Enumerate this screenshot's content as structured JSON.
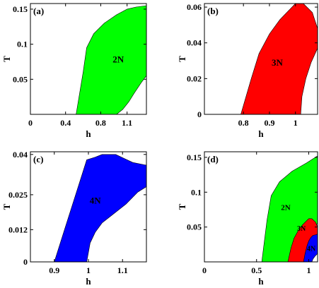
{
  "chart_data": [
    {
      "type": "area",
      "panel_label": "(a)",
      "xlabel": "h",
      "ylabel": "T",
      "xlim": [
        0,
        1.32
      ],
      "ylim": [
        0,
        0.158
      ],
      "xticks": [
        0,
        0.4,
        0.8,
        1.1
      ],
      "xtick_labels": [
        "0",
        "0.4",
        "0.8",
        "1.1"
      ],
      "yticks": [
        0.05,
        0.1,
        0.15
      ],
      "ytick_labels": [
        "0.05",
        "0.1",
        "0.15"
      ],
      "regions": [
        {
          "name": "2N",
          "color": "#00ff00",
          "label_at": [
            1.0,
            0.077
          ],
          "label_size": 13,
          "boundary": [
            [
              0.52,
              0.0
            ],
            [
              0.6,
              0.06
            ],
            [
              0.64,
              0.095
            ],
            [
              0.72,
              0.115
            ],
            [
              0.84,
              0.13
            ],
            [
              0.98,
              0.142
            ],
            [
              1.1,
              0.15
            ],
            [
              1.2,
              0.153
            ],
            [
              1.32,
              0.155
            ],
            [
              1.32,
              0.055
            ],
            [
              1.26,
              0.045
            ],
            [
              1.18,
              0.03
            ],
            [
              1.12,
              0.018
            ],
            [
              1.05,
              0.007
            ],
            [
              0.98,
              0.0
            ]
          ]
        }
      ]
    },
    {
      "type": "area",
      "panel_label": "(b)",
      "xlabel": "h",
      "ylabel": "T",
      "xlim": [
        0.65,
        1.085
      ],
      "ylim": [
        0,
        0.062
      ],
      "xticks": [
        0.8,
        0.9,
        1.0
      ],
      "xtick_labels": [
        "0.8",
        "0.9",
        "1"
      ],
      "yticks": [
        0,
        0.02,
        0.04,
        0.06
      ],
      "ytick_labels": [
        "0",
        "0.02",
        "0.04",
        "0.06"
      ],
      "regions": [
        {
          "name": "3N",
          "color": "#ff0000",
          "label_at": [
            0.93,
            0.0285
          ],
          "label_size": 13,
          "boundary": [
            [
              0.79,
              0.0
            ],
            [
              0.83,
              0.02
            ],
            [
              0.86,
              0.034
            ],
            [
              0.9,
              0.045
            ],
            [
              0.94,
              0.053
            ],
            [
              0.98,
              0.059
            ],
            [
              1.0,
              0.062
            ],
            [
              1.03,
              0.062
            ],
            [
              1.065,
              0.057
            ],
            [
              1.085,
              0.048
            ],
            [
              1.085,
              0.037
            ],
            [
              1.06,
              0.029
            ],
            [
              1.04,
              0.02
            ],
            [
              1.025,
              0.01
            ],
            [
              1.02,
              0.0
            ]
          ]
        }
      ]
    },
    {
      "type": "area",
      "panel_label": "(c)",
      "xlabel": "h",
      "ylabel": "T",
      "xlim": [
        0.83,
        1.17
      ],
      "ylim": [
        0,
        0.041
      ],
      "xticks": [
        0.9,
        1.0,
        1.1
      ],
      "xtick_labels": [
        "0.9",
        "1",
        "1.1"
      ],
      "yticks": [
        0,
        0.012,
        0.025,
        0.04
      ],
      "ytick_labels": [
        "0",
        "0.012",
        "0.025",
        "0.04"
      ],
      "regions": [
        {
          "name": "4N",
          "color": "#0000ff",
          "label_at": [
            1.02,
            0.0225
          ],
          "label_size": 13,
          "boundary": [
            [
              0.9,
              0.0
            ],
            [
              0.93,
              0.012
            ],
            [
              0.96,
              0.024
            ],
            [
              0.985,
              0.034
            ],
            [
              0.995,
              0.038
            ],
            [
              1.02,
              0.039
            ],
            [
              1.04,
              0.04
            ],
            [
              1.08,
              0.04
            ],
            [
              1.105,
              0.0385
            ],
            [
              1.13,
              0.037
            ],
            [
              1.17,
              0.036
            ],
            [
              1.17,
              0.028
            ],
            [
              1.145,
              0.026
            ],
            [
              1.11,
              0.0215
            ],
            [
              1.07,
              0.0175
            ],
            [
              1.04,
              0.0145
            ],
            [
              1.02,
              0.011
            ],
            [
              1.005,
              0.007
            ],
            [
              0.995,
              0.0
            ]
          ]
        }
      ]
    },
    {
      "type": "area",
      "panel_label": "(d)",
      "xlabel": "h",
      "ylabel": "T",
      "xlim": [
        0,
        1.085
      ],
      "ylim": [
        0,
        0.158
      ],
      "xticks": [
        0,
        0.5,
        1.0
      ],
      "xtick_labels": [
        "0",
        "0.5",
        "1"
      ],
      "yticks": [
        0.05,
        0.1,
        0.15
      ],
      "ytick_labels": [
        "0.05",
        "0.1",
        "0.15"
      ],
      "regions": [
        {
          "name": "2N",
          "color": "#00ff00",
          "label_at": [
            0.78,
            0.077
          ],
          "label_size": 11,
          "boundary": [
            [
              0.55,
              0.0
            ],
            [
              0.6,
              0.06
            ],
            [
              0.64,
              0.095
            ],
            [
              0.72,
              0.115
            ],
            [
              0.84,
              0.13
            ],
            [
              0.98,
              0.142
            ],
            [
              1.085,
              0.152
            ],
            [
              1.085,
              0.055
            ],
            [
              1.04,
              0.05
            ],
            [
              0.99,
              0.045
            ],
            [
              0.94,
              0.035
            ],
            [
              0.9,
              0.02
            ],
            [
              0.87,
              0.007
            ],
            [
              0.86,
              0.0
            ]
          ]
        },
        {
          "name": "3N",
          "color": "#ff0000",
          "label_at": [
            0.93,
            0.047
          ],
          "label_size": 10,
          "boundary": [
            [
              0.8,
              0.0
            ],
            [
              0.83,
              0.02
            ],
            [
              0.86,
              0.034
            ],
            [
              0.9,
              0.045
            ],
            [
              0.94,
              0.053
            ],
            [
              0.98,
              0.059
            ],
            [
              1.0,
              0.062
            ],
            [
              1.03,
              0.062
            ],
            [
              1.065,
              0.057
            ],
            [
              1.085,
              0.05
            ],
            [
              1.085,
              0.038
            ],
            [
              1.06,
              0.033
            ],
            [
              1.04,
              0.028
            ],
            [
              1.02,
              0.02
            ],
            [
              1.0,
              0.01
            ],
            [
              0.99,
              0.0
            ]
          ]
        },
        {
          "name": "4N",
          "color": "#0000ff",
          "label_at": [
            1.025,
            0.018
          ],
          "label_size": 10,
          "boundary": [
            [
              0.95,
              0.0
            ],
            [
              0.965,
              0.012
            ],
            [
              0.985,
              0.024
            ],
            [
              1.0,
              0.03
            ],
            [
              1.02,
              0.035
            ],
            [
              1.04,
              0.038
            ],
            [
              1.07,
              0.039
            ],
            [
              1.085,
              0.04
            ],
            [
              1.085,
              0.012
            ],
            [
              1.06,
              0.008
            ],
            [
              1.04,
              0.004
            ],
            [
              1.03,
              0.0
            ]
          ]
        }
      ]
    }
  ]
}
